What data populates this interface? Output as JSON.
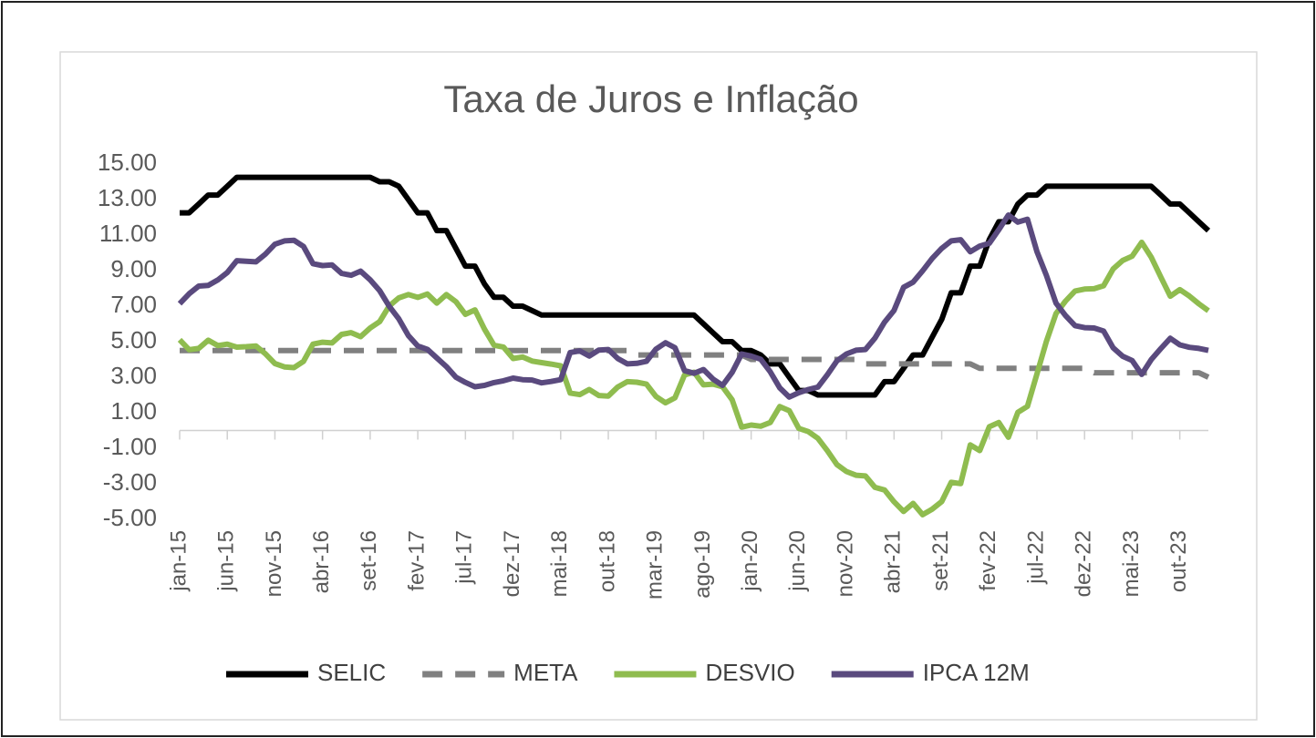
{
  "chart_data": {
    "type": "line",
    "title": "Taxa de Juros e Inflação",
    "categories": [
      "jan-15",
      null,
      null,
      null,
      null,
      "jun-15",
      null,
      null,
      null,
      null,
      "nov-15",
      null,
      null,
      null,
      null,
      "abr-16",
      null,
      null,
      null,
      null,
      "set-16",
      null,
      null,
      null,
      null,
      "fev-17",
      null,
      null,
      null,
      null,
      "jul-17",
      null,
      null,
      null,
      null,
      "dez-17",
      null,
      null,
      null,
      null,
      "mai-18",
      null,
      null,
      null,
      null,
      "out-18",
      null,
      null,
      null,
      null,
      "mar-19",
      null,
      null,
      null,
      null,
      "ago-19",
      null,
      null,
      null,
      null,
      "jan-20",
      null,
      null,
      null,
      null,
      "jun-20",
      null,
      null,
      null,
      null,
      "nov-20",
      null,
      null,
      null,
      null,
      "abr-21",
      null,
      null,
      null,
      null,
      "set-21",
      null,
      null,
      null,
      null,
      "fev-22",
      null,
      null,
      null,
      null,
      "jul-22",
      null,
      null,
      null,
      null,
      "dez-22",
      null,
      null,
      null,
      null,
      "mai-23",
      null,
      null,
      null,
      null,
      "out-23",
      null,
      null,
      null
    ],
    "series": [
      {
        "name": "SELIC",
        "color": "#000000",
        "dashed": false,
        "values": [
          12.25,
          12.25,
          12.75,
          13.25,
          13.25,
          13.75,
          14.25,
          14.25,
          14.25,
          14.25,
          14.25,
          14.25,
          14.25,
          14.25,
          14.25,
          14.25,
          14.25,
          14.25,
          14.25,
          14.25,
          14.25,
          14.0,
          14.0,
          13.75,
          13.0,
          12.25,
          12.25,
          11.25,
          11.25,
          10.25,
          9.25,
          9.25,
          8.25,
          7.5,
          7.5,
          7.0,
          7.0,
          6.75,
          6.5,
          6.5,
          6.5,
          6.5,
          6.5,
          6.5,
          6.5,
          6.5,
          6.5,
          6.5,
          6.5,
          6.5,
          6.5,
          6.5,
          6.5,
          6.5,
          6.5,
          6.0,
          5.5,
          5.0,
          5.0,
          4.5,
          4.5,
          4.25,
          3.75,
          3.75,
          3.0,
          2.25,
          2.25,
          2.0,
          2.0,
          2.0,
          2.0,
          2.0,
          2.0,
          2.0,
          2.75,
          2.75,
          3.5,
          4.25,
          4.25,
          5.25,
          6.25,
          7.75,
          7.75,
          9.25,
          9.25,
          10.75,
          11.75,
          11.75,
          12.75,
          13.25,
          13.25,
          13.75,
          13.75,
          13.75,
          13.75,
          13.75,
          13.75,
          13.75,
          13.75,
          13.75,
          13.75,
          13.75,
          13.75,
          13.25,
          12.75,
          12.75,
          12.25,
          11.75,
          11.25
        ]
      },
      {
        "name": "META",
        "color": "#808080",
        "dashed": true,
        "values": [
          4.5,
          4.5,
          4.5,
          4.5,
          4.5,
          4.5,
          4.5,
          4.5,
          4.5,
          4.5,
          4.5,
          4.5,
          4.5,
          4.5,
          4.5,
          4.5,
          4.5,
          4.5,
          4.5,
          4.5,
          4.5,
          4.5,
          4.5,
          4.5,
          4.5,
          4.5,
          4.5,
          4.5,
          4.5,
          4.5,
          4.5,
          4.5,
          4.5,
          4.5,
          4.5,
          4.5,
          4.5,
          4.5,
          4.5,
          4.5,
          4.5,
          4.5,
          4.5,
          4.5,
          4.5,
          4.5,
          4.5,
          4.5,
          4.25,
          4.25,
          4.25,
          4.25,
          4.25,
          4.25,
          4.25,
          4.25,
          4.25,
          4.25,
          4.25,
          4.25,
          4.0,
          4.0,
          4.0,
          4.0,
          4.0,
          4.0,
          4.0,
          4.0,
          4.0,
          4.0,
          4.0,
          4.0,
          3.75,
          3.75,
          3.75,
          3.75,
          3.75,
          3.75,
          3.75,
          3.75,
          3.75,
          3.75,
          3.75,
          3.75,
          3.5,
          3.5,
          3.5,
          3.5,
          3.5,
          3.5,
          3.5,
          3.5,
          3.5,
          3.5,
          3.5,
          3.5,
          3.25,
          3.25,
          3.25,
          3.25,
          3.25,
          3.25,
          3.25,
          3.25,
          3.25,
          3.25,
          3.25,
          3.25,
          3.0
        ]
      },
      {
        "name": "DESVIO",
        "color": "#8fbc4f",
        "dashed": false,
        "values": [
          5.11,
          4.55,
          4.62,
          5.08,
          4.78,
          4.86,
          4.69,
          4.72,
          4.76,
          4.32,
          3.77,
          3.58,
          3.54,
          3.89,
          4.86,
          4.97,
          4.93,
          5.41,
          5.51,
          5.28,
          5.77,
          6.13,
          7.01,
          7.46,
          7.65,
          7.49,
          7.68,
          7.17,
          7.65,
          7.25,
          6.54,
          6.79,
          5.71,
          4.8,
          4.7,
          4.05,
          4.14,
          3.91,
          3.82,
          3.74,
          3.64,
          2.11,
          2.02,
          2.31,
          1.97,
          1.94,
          2.45,
          2.75,
          2.72,
          2.61,
          1.92,
          1.56,
          1.84,
          3.13,
          3.28,
          2.57,
          2.61,
          2.46,
          1.73,
          0.19,
          0.31,
          0.24,
          0.45,
          1.35,
          1.12,
          0.12,
          -0.06,
          -0.44,
          -1.14,
          -1.92,
          -2.31,
          -2.52,
          -2.56,
          -3.2,
          -3.35,
          -4.01,
          -4.56,
          -4.1,
          -4.74,
          -4.43,
          -4.0,
          -2.92,
          -2.99,
          -0.81,
          -1.13,
          0.21,
          0.45,
          -0.38,
          1.02,
          1.36,
          3.18,
          5.02,
          6.58,
          7.28,
          7.85,
          7.96,
          7.98,
          8.15,
          9.1,
          9.57,
          9.81,
          10.59,
          9.76,
          8.64,
          7.56,
          7.93,
          7.57,
          7.13,
          6.74
        ]
      },
      {
        "name": "IPCA 12M",
        "color": "#5a4a7e",
        "dashed": false,
        "values": [
          7.14,
          7.7,
          8.13,
          8.17,
          8.47,
          8.89,
          9.56,
          9.53,
          9.49,
          9.93,
          10.48,
          10.67,
          10.71,
          10.36,
          9.39,
          9.28,
          9.32,
          8.84,
          8.74,
          8.97,
          8.48,
          7.87,
          6.99,
          6.29,
          5.35,
          4.76,
          4.57,
          4.08,
          3.6,
          3.0,
          2.71,
          2.46,
          2.54,
          2.7,
          2.8,
          2.95,
          2.86,
          2.84,
          2.68,
          2.76,
          2.86,
          4.39,
          4.48,
          4.19,
          4.53,
          4.56,
          4.05,
          3.75,
          3.78,
          3.89,
          4.58,
          4.94,
          4.66,
          3.37,
          3.22,
          3.43,
          2.89,
          2.54,
          3.27,
          4.31,
          4.19,
          4.01,
          3.3,
          2.4,
          1.88,
          2.13,
          2.31,
          2.44,
          3.14,
          3.92,
          4.31,
          4.52,
          4.56,
          5.2,
          6.1,
          6.76,
          8.06,
          8.35,
          8.99,
          9.68,
          10.25,
          10.67,
          10.74,
          10.06,
          10.38,
          10.54,
          11.3,
          12.13,
          11.73,
          11.89,
          10.07,
          8.73,
          7.17,
          6.47,
          5.9,
          5.79,
          5.77,
          5.6,
          4.65,
          4.18,
          3.94,
          3.16,
          3.99,
          4.61,
          5.19,
          4.82,
          4.68,
          4.62,
          4.51
        ]
      }
    ],
    "ylim": [
      -5,
      15
    ],
    "yticks": [
      {
        "value": -5,
        "label": "-5.00"
      },
      {
        "value": -3,
        "label": "-3.00"
      },
      {
        "value": -1,
        "label": "-1.00"
      },
      {
        "value": 1,
        "label": "1.00"
      },
      {
        "value": 3,
        "label": "3.00"
      },
      {
        "value": 5,
        "label": "5.00"
      },
      {
        "value": 7,
        "label": "7.00"
      },
      {
        "value": 9,
        "label": "9.00"
      },
      {
        "value": 11,
        "label": "11.00"
      },
      {
        "value": 13,
        "label": "13.00"
      },
      {
        "value": 15,
        "label": "15.00"
      }
    ],
    "grid": false,
    "legend": "bottom"
  }
}
